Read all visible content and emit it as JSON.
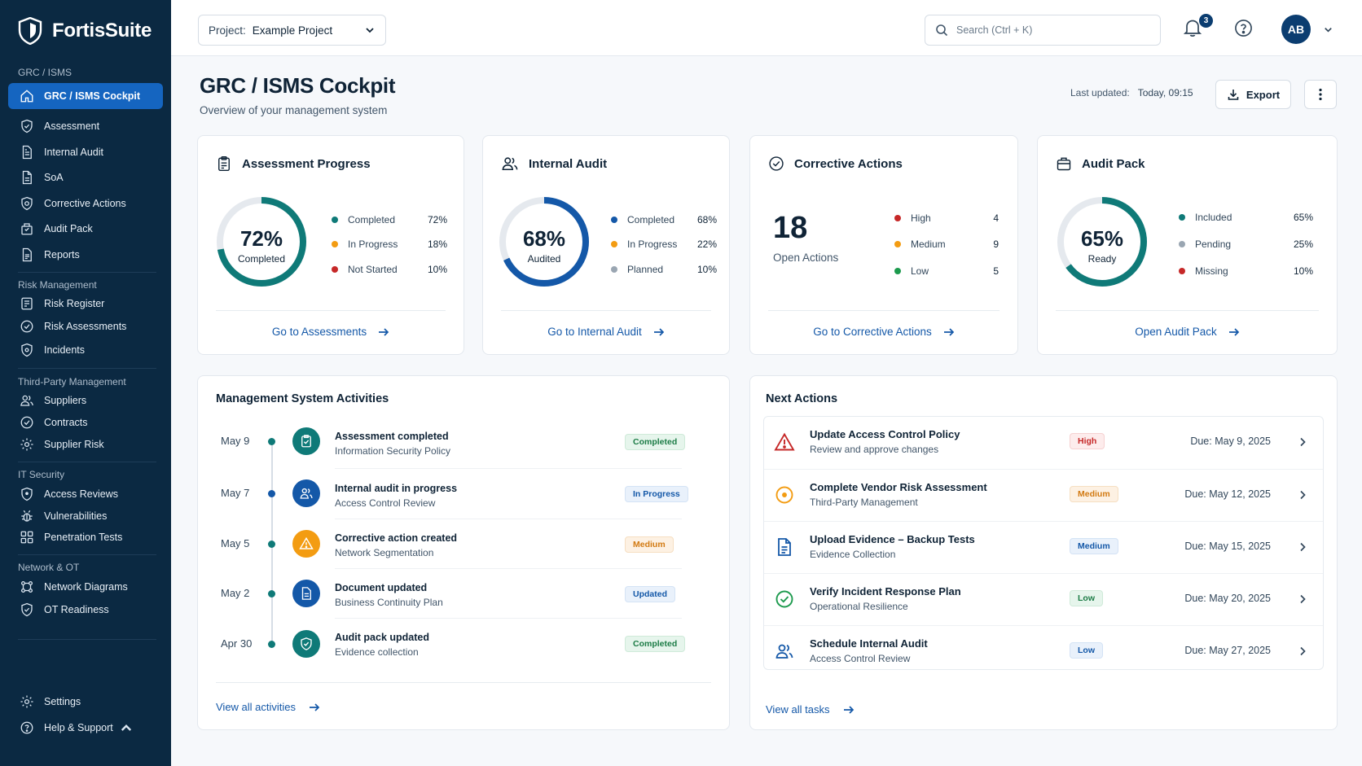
{
  "app": {
    "name": "FortisSuite"
  },
  "colors": {
    "sidebar_bg": "#0b2942",
    "accent": "#1565c0",
    "teal": "#0f7a78",
    "blue": "#1458a8",
    "orange": "#f39c12",
    "red": "#c62828",
    "gray": "#9aa6b2"
  },
  "sidebar": {
    "sections": [
      {
        "title": "GRC / ISMS",
        "items": [
          {
            "label": "GRC / ISMS Cockpit",
            "icon": "home-icon",
            "active": true
          },
          {
            "label": "Assessment",
            "icon": "shield-check-icon"
          },
          {
            "label": "Internal Audit",
            "icon": "document-check-icon"
          },
          {
            "label": "SoA",
            "icon": "document-icon"
          },
          {
            "label": "Corrective Actions",
            "icon": "shield-gear-icon"
          },
          {
            "label": "Audit Pack",
            "icon": "package-icon"
          },
          {
            "label": "Reports",
            "icon": "report-icon"
          }
        ]
      },
      {
        "title": "Risk Management",
        "items": [
          {
            "label": "Risk Register",
            "icon": "register-icon"
          },
          {
            "label": "Risk Assessments",
            "icon": "check-circle-icon"
          },
          {
            "label": "Incidents",
            "icon": "shield-alert-icon"
          }
        ]
      },
      {
        "title": "Third-Party Management",
        "items": [
          {
            "label": "Suppliers",
            "icon": "users-icon"
          },
          {
            "label": "Contracts",
            "icon": "check-circle-icon"
          },
          {
            "label": "Supplier Risk",
            "icon": "gear-icon"
          }
        ]
      },
      {
        "title": "IT Security",
        "items": [
          {
            "label": "Access Reviews",
            "icon": "shield-icon"
          },
          {
            "label": "Vulnerabilities",
            "icon": "bug-icon"
          },
          {
            "label": "Penetration Tests",
            "icon": "grid-icon"
          }
        ]
      },
      {
        "title": "Network & OT",
        "items": [
          {
            "label": "Network Diagrams",
            "icon": "network-icon"
          },
          {
            "label": "OT Readiness",
            "icon": "shield-check-icon"
          }
        ]
      }
    ],
    "footer": [
      {
        "label": "Settings",
        "icon": "gear-icon"
      },
      {
        "label": "Help & Support",
        "icon": "help-circle-icon"
      }
    ]
  },
  "topbar": {
    "project_label": "Project:",
    "project_value": "Example Project",
    "search_placeholder": "Search (Ctrl + K)",
    "notifications_count": "3",
    "avatar_initials": "AB"
  },
  "header": {
    "title": "GRC / ISMS Cockpit",
    "subtitle": "Overview of your management system",
    "last_updated_label": "Last updated:",
    "last_updated_value": "Today, 09:15",
    "export_label": "Export"
  },
  "cards": {
    "assessment": {
      "title": "Assessment Progress",
      "ring_value": "72%",
      "ring_caption": "Completed",
      "ring_fraction": 0.72,
      "legend": [
        {
          "name": "Completed",
          "pct": "72%",
          "color": "#0f7a78"
        },
        {
          "name": "In Progress",
          "pct": "18%",
          "color": "#f39c12"
        },
        {
          "name": "Not Started",
          "pct": "10%",
          "color": "#c62828"
        }
      ],
      "link": "Go to Assessments"
    },
    "audit": {
      "title": "Internal Audit",
      "ring_value": "68%",
      "ring_caption": "Audited",
      "ring_fraction": 0.68,
      "legend": [
        {
          "name": "Completed",
          "pct": "68%",
          "color": "#1458a8"
        },
        {
          "name": "In Progress",
          "pct": "22%",
          "color": "#f39c12"
        },
        {
          "name": "Planned",
          "pct": "10%",
          "color": "#9aa6b2"
        }
      ],
      "link": "Go to Internal Audit"
    },
    "corrective": {
      "title": "Corrective Actions",
      "count": "18",
      "count_caption": "Open Actions",
      "legend": [
        {
          "name": "High",
          "value": "4",
          "color": "#c62828"
        },
        {
          "name": "Medium",
          "value": "9",
          "color": "#f39c12"
        },
        {
          "name": "Low",
          "value": "5",
          "color": "#1c9a4d"
        }
      ],
      "link": "Go to Corrective Actions"
    },
    "auditpack": {
      "title": "Audit Pack",
      "ring_value": "65%",
      "ring_caption": "Ready",
      "ring_fraction": 0.65,
      "legend": [
        {
          "name": "Included",
          "pct": "65%",
          "color": "#0f7a78"
        },
        {
          "name": "Pending",
          "pct": "25%",
          "color": "#9aa6b2"
        },
        {
          "name": "Missing",
          "pct": "10%",
          "color": "#c62828"
        }
      ],
      "link": "Open Audit Pack"
    }
  },
  "activities": {
    "title": "Management System Activities",
    "items": [
      {
        "date": "May 9",
        "title": "Assessment completed",
        "sub": "Information Security Policy",
        "badge": "Completed",
        "badge_style": "green",
        "icon": "clipboard-icon",
        "icon_color": "#0f7a78"
      },
      {
        "date": "May 7",
        "title": "Internal audit in progress",
        "sub": "Access Control Review",
        "badge": "In Progress",
        "badge_style": "blue",
        "icon": "users-icon",
        "icon_color": "#1458a8"
      },
      {
        "date": "May 5",
        "title": "Corrective action created",
        "sub": "Network Segmentation",
        "badge": "Medium",
        "badge_style": "orange",
        "icon": "warning-icon",
        "icon_color": "#f39c12"
      },
      {
        "date": "May 2",
        "title": "Document updated",
        "sub": "Business Continuity Plan",
        "badge": "Updated",
        "badge_style": "blue",
        "icon": "document-icon",
        "icon_color": "#1458a8"
      },
      {
        "date": "Apr 30",
        "title": "Audit pack updated",
        "sub": "Evidence collection",
        "badge": "Completed",
        "badge_style": "green",
        "icon": "shield-icon",
        "icon_color": "#0f7a78"
      }
    ],
    "link": "View all activities"
  },
  "next_actions": {
    "title": "Next Actions",
    "items": [
      {
        "title": "Update Access Control Policy",
        "sub": "Review and approve changes",
        "badge": "High",
        "badge_style": "red",
        "due": "Due: May 9, 2025",
        "icon": "warning-icon"
      },
      {
        "title": "Complete Vendor Risk Assessment",
        "sub": "Third-Party Management",
        "badge": "Medium",
        "badge_style": "orange",
        "due": "Due: May 12, 2025",
        "icon": "target-icon"
      },
      {
        "title": "Upload Evidence – Backup Tests",
        "sub": "Evidence Collection",
        "badge": "Medium",
        "badge_style": "blue",
        "due": "Due: May 15, 2025",
        "icon": "document-icon"
      },
      {
        "title": "Verify Incident Response Plan",
        "sub": "Operational Resilience",
        "badge": "Low",
        "badge_style": "green",
        "due": "Due: May 20, 2025",
        "icon": "check-circle-icon"
      },
      {
        "title": "Schedule Internal Audit",
        "sub": "Access Control Review",
        "badge": "Low",
        "badge_style": "blue",
        "due": "Due: May 27, 2025",
        "icon": "users-icon"
      }
    ],
    "link": "View all tasks"
  }
}
